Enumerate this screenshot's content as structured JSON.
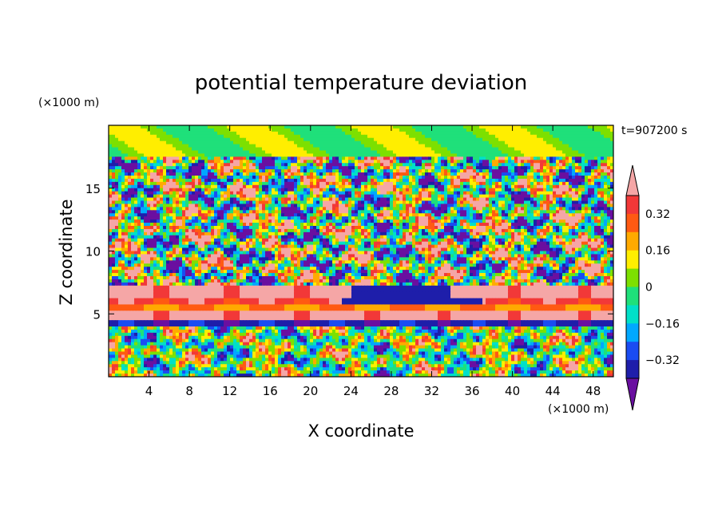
{
  "chart_data": {
    "type": "heatmap",
    "title": "potential temperature deviation",
    "xlabel": "X coordinate",
    "ylabel": "Z coordinate",
    "x_unit": "(×1000 m)",
    "y_unit": "(×1000 m)",
    "time_label": "t=907200 s",
    "xlim": [
      0,
      50
    ],
    "ylim": [
      0,
      20
    ],
    "x_ticks": [
      4,
      8,
      12,
      16,
      20,
      24,
      28,
      32,
      36,
      40,
      44,
      48
    ],
    "y_ticks": [
      5,
      10,
      15
    ],
    "colorbar": {
      "levels": [
        -0.4,
        -0.32,
        -0.24,
        -0.16,
        -0.08,
        0,
        0.08,
        0.16,
        0.24,
        0.32,
        0.4
      ],
      "tick_labels": [
        "0.32",
        "0.16",
        "0",
        "−0.16",
        "−0.32"
      ],
      "tick_values": [
        0.32,
        0.16,
        0,
        -0.16,
        -0.32
      ],
      "colors": [
        "#6a0fa0",
        "#1e1eaa",
        "#1a4cf2",
        "#00a8ff",
        "#00e0c8",
        "#1fe07a",
        "#7de000",
        "#ffee00",
        "#ffaa00",
        "#ff5a12",
        "#f23838",
        "#f5a6a6"
      ],
      "extend": "both"
    },
    "bands": [
      {
        "z_from": 0,
        "z_to": 4,
        "description_value": 0.0
      },
      {
        "z_from": 4.0,
        "z_to": 4.6,
        "description_value": -0.36
      },
      {
        "z_from": 4.6,
        "z_to": 5.3,
        "description_value": 0.44
      },
      {
        "z_from": 5.3,
        "z_to": 5.8,
        "description_value": 0.24
      },
      {
        "z_from": 5.8,
        "z_to": 6.3,
        "description_value": 0.36
      },
      {
        "z_from": 6.3,
        "z_to": 7.2,
        "description_value": 0.44
      },
      {
        "z_from": 7.2,
        "z_to": 20,
        "description_value": 0.0
      }
    ],
    "grid": false
  }
}
